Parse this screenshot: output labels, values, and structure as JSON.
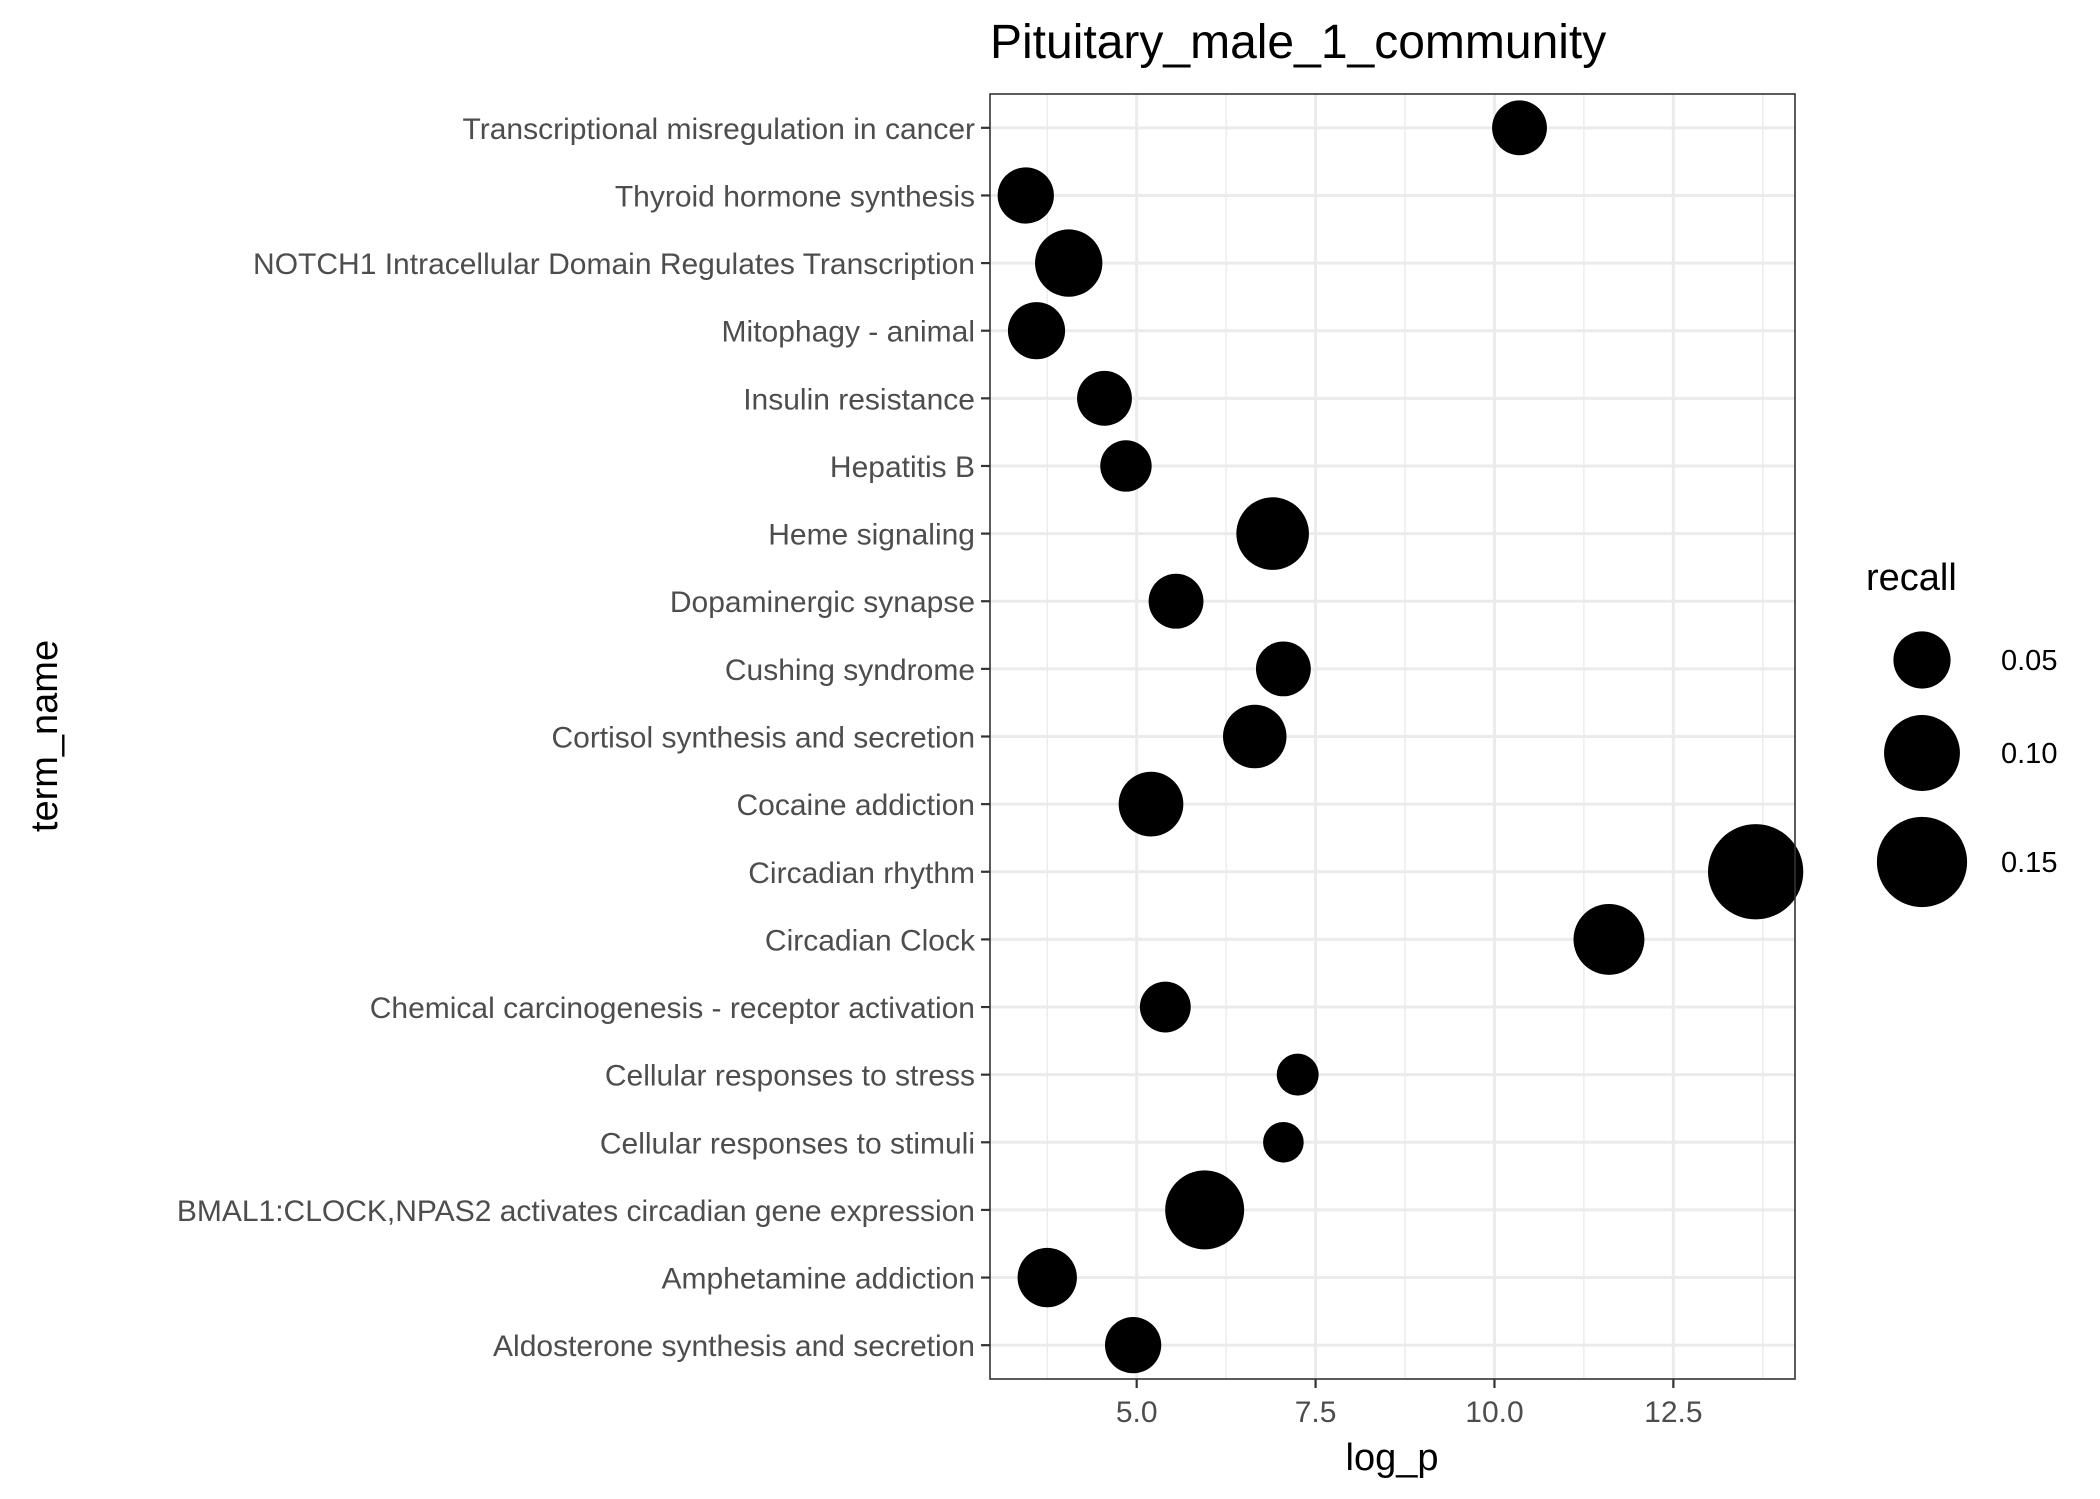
{
  "chart_data": {
    "type": "scatter",
    "title": "Pituitary_male_1_community",
    "xlabel": "log_p",
    "ylabel": "term_name",
    "xlim": [
      2.95,
      14.2
    ],
    "xticks": [
      5.0,
      7.5,
      10.0,
      12.5
    ],
    "xtick_labels": [
      "5.0",
      "7.5",
      "10.0",
      "12.5"
    ],
    "grid": true,
    "categories": [
      "Transcriptional misregulation in cancer",
      "Thyroid hormone synthesis",
      "NOTCH1 Intracellular Domain Regulates Transcription",
      "Mitophagy - animal",
      "Insulin resistance",
      "Hepatitis B",
      "Heme signaling",
      "Dopaminergic synapse",
      "Cushing syndrome",
      "Cortisol synthesis and secretion",
      "Cocaine addiction",
      "Circadian rhythm",
      "Circadian Clock",
      "Chemical carcinogenesis - receptor activation",
      "Cellular responses to stress",
      "Cellular responses to stimuli",
      "BMAL1:CLOCK,NPAS2 activates circadian gene expression",
      "Amphetamine addiction",
      "Aldosterone synthesis and secretion"
    ],
    "points": [
      {
        "term": "Transcriptional misregulation in cancer",
        "log_p": 10.35,
        "recall": 0.045
      },
      {
        "term": "Thyroid hormone synthesis",
        "log_p": 3.45,
        "recall": 0.048
      },
      {
        "term": "NOTCH1 Intracellular Domain Regulates Transcription",
        "log_p": 4.05,
        "recall": 0.075
      },
      {
        "term": "Mitophagy - animal",
        "log_p": 3.6,
        "recall": 0.05
      },
      {
        "term": "Insulin resistance",
        "log_p": 4.55,
        "recall": 0.045
      },
      {
        "term": "Hepatitis B",
        "log_p": 4.85,
        "recall": 0.038
      },
      {
        "term": "Heme signaling",
        "log_p": 6.9,
        "recall": 0.09
      },
      {
        "term": "Dopaminergic synapse",
        "log_p": 5.55,
        "recall": 0.045
      },
      {
        "term": "Cushing syndrome",
        "log_p": 7.05,
        "recall": 0.045
      },
      {
        "term": "Cortisol synthesis and secretion",
        "log_p": 6.65,
        "recall": 0.065
      },
      {
        "term": "Cocaine addiction",
        "log_p": 5.2,
        "recall": 0.068
      },
      {
        "term": "Circadian rhythm",
        "log_p": 13.65,
        "recall": 0.17
      },
      {
        "term": "Circadian Clock",
        "log_p": 11.6,
        "recall": 0.085
      },
      {
        "term": "Chemical carcinogenesis - receptor activation",
        "log_p": 5.4,
        "recall": 0.037
      },
      {
        "term": "Cellular responses to stress",
        "log_p": 7.25,
        "recall": 0.022
      },
      {
        "term": "Cellular responses to stimuli",
        "log_p": 7.05,
        "recall": 0.02
      },
      {
        "term": "BMAL1:CLOCK,NPAS2 activates circadian gene expression",
        "log_p": 5.95,
        "recall": 0.11
      },
      {
        "term": "Amphetamine addiction",
        "log_p": 3.75,
        "recall": 0.055
      },
      {
        "term": "Aldosterone synthesis and secretion",
        "log_p": 4.95,
        "recall": 0.048
      }
    ],
    "legend": {
      "title": "recall",
      "placement": "right",
      "entries": [
        {
          "label": "0.05",
          "value": 0.05
        },
        {
          "label": "0.10",
          "value": 0.1
        },
        {
          "label": "0.15",
          "value": 0.15
        }
      ]
    },
    "point_color": "#000000"
  }
}
